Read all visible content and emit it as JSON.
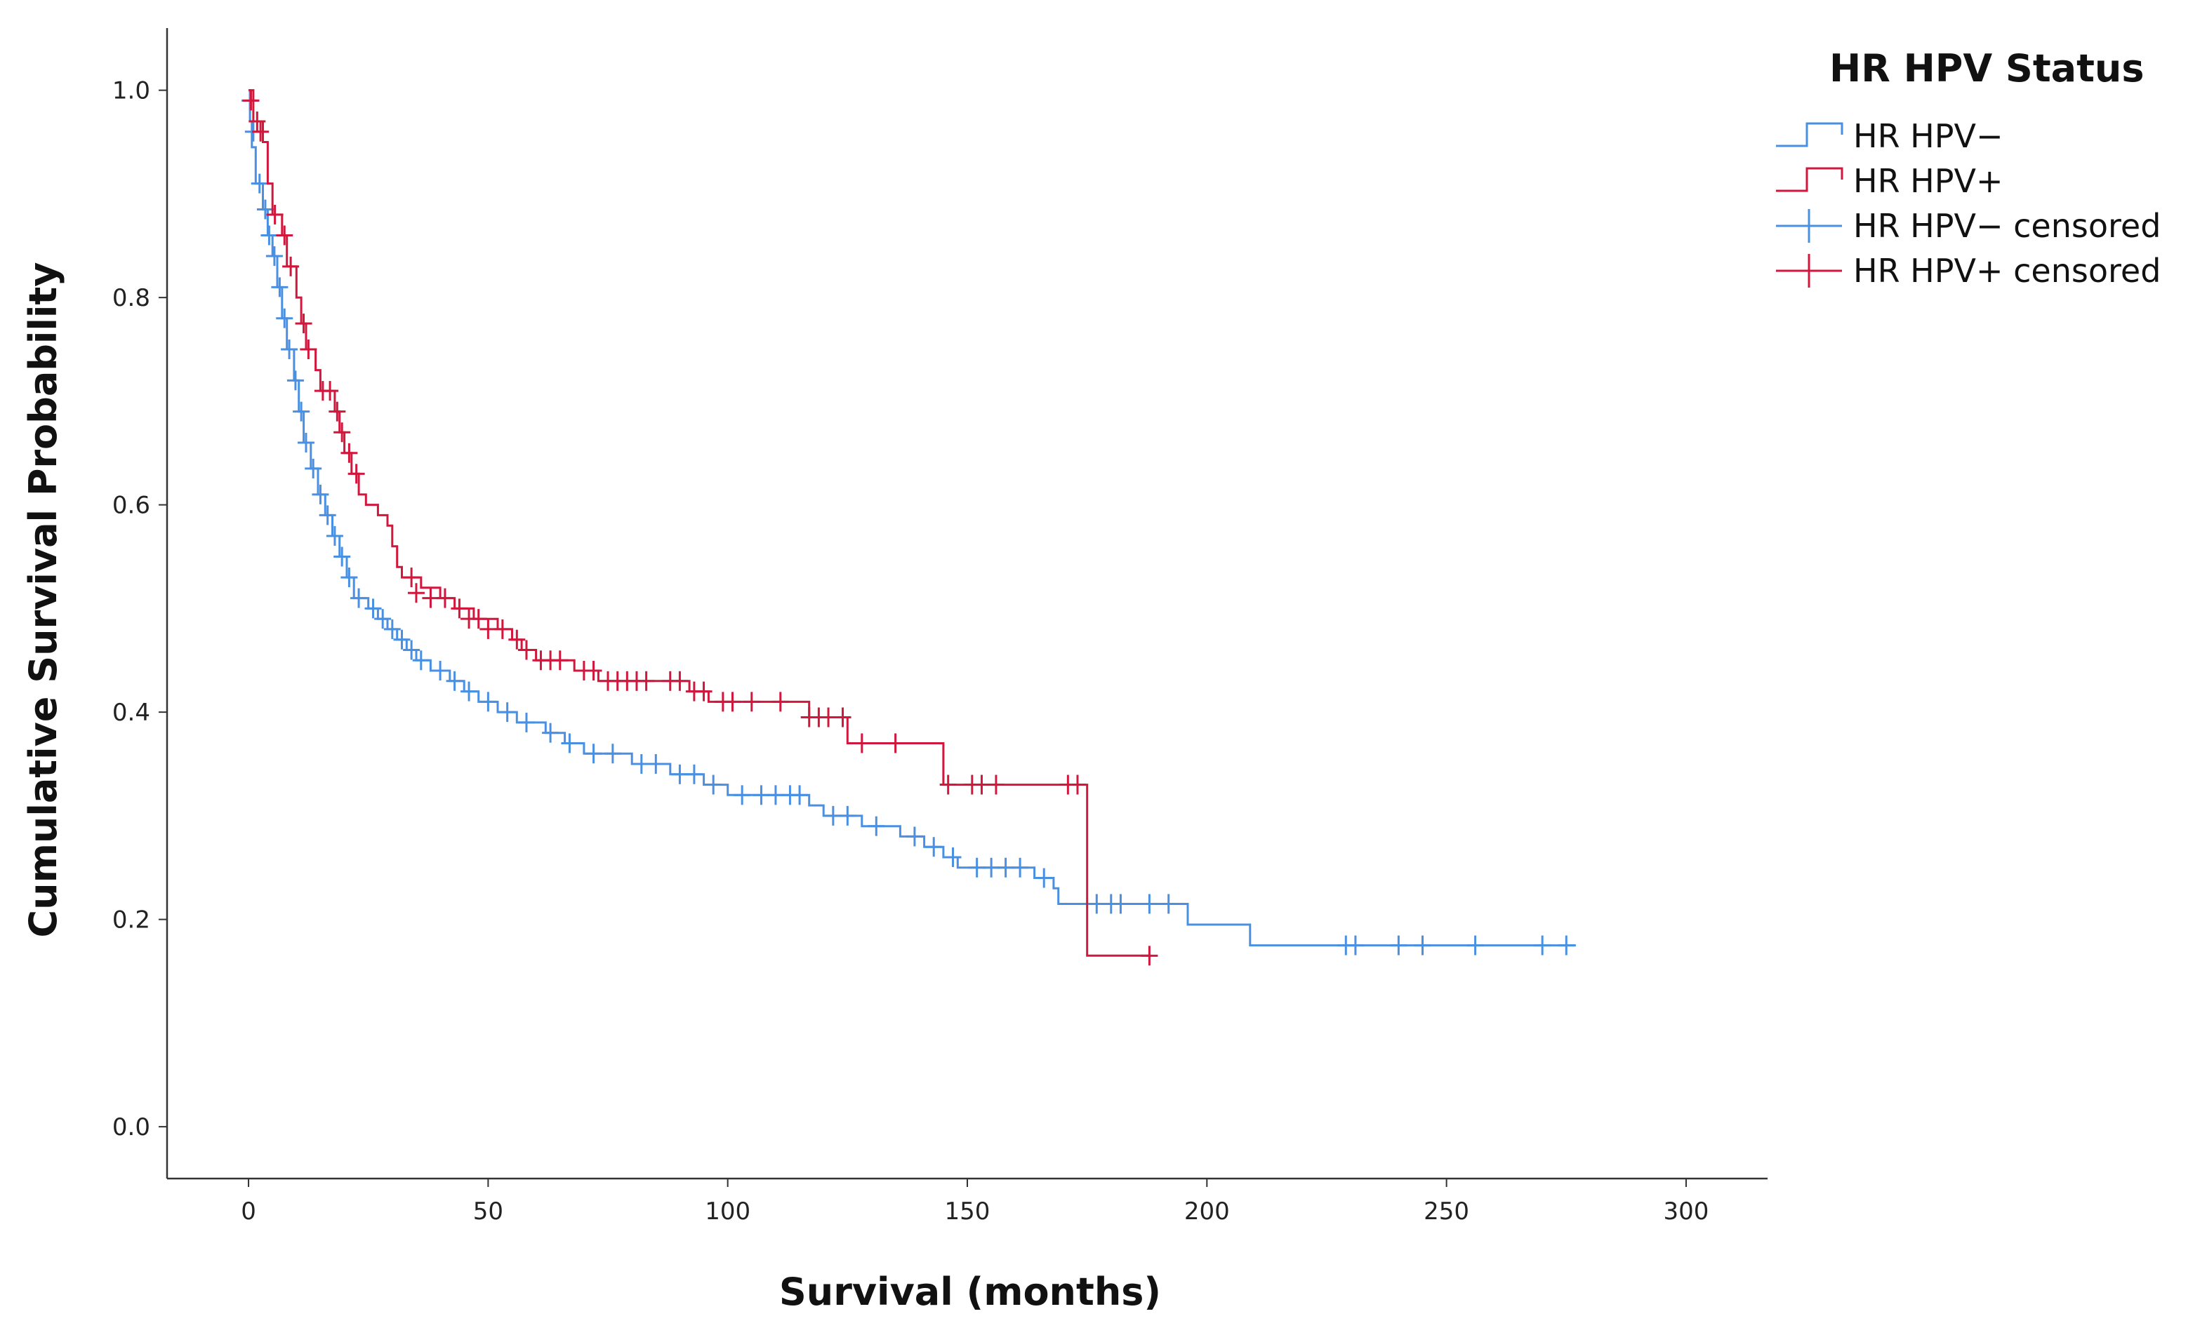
{
  "chart_data": {
    "type": "line",
    "subtype": "kaplan-meier-step",
    "title": "",
    "xlabel": "Survival (months)",
    "ylabel": "Cumulative Survival Probability",
    "xlim": [
      -17,
      317
    ],
    "ylim": [
      -0.05,
      1.06
    ],
    "x_ticks": [
      0,
      50,
      100,
      150,
      200,
      250,
      300
    ],
    "x_tick_labels": [
      "0",
      "50",
      "100",
      "150",
      "200",
      "250",
      "300"
    ],
    "y_ticks": [
      0.0,
      0.2,
      0.4,
      0.6,
      0.8,
      1.0
    ],
    "y_tick_labels": [
      "0.0",
      "0.2",
      "0.4",
      "0.6",
      "0.8",
      "1.0"
    ],
    "grid": false,
    "legend": {
      "title": "HR HPV Status",
      "position": "top-right",
      "entries": [
        {
          "label": "HR HPV−",
          "series": "hpv_neg",
          "kind": "line"
        },
        {
          "label": "HR HPV+",
          "series": "hpv_pos",
          "kind": "line"
        },
        {
          "label": "HR HPV− censored",
          "series": "hpv_neg",
          "kind": "censor"
        },
        {
          "label": "HR HPV+ censored",
          "series": "hpv_pos",
          "kind": "censor"
        }
      ]
    },
    "series": [
      {
        "id": "hpv_neg",
        "color": "#4a90e2",
        "steps": [
          [
            0,
            1.0
          ],
          [
            0.3,
            0.97
          ],
          [
            0.7,
            0.945
          ],
          [
            1.5,
            0.91
          ],
          [
            3,
            0.885
          ],
          [
            4,
            0.86
          ],
          [
            5,
            0.84
          ],
          [
            6,
            0.81
          ],
          [
            7,
            0.78
          ],
          [
            8,
            0.75
          ],
          [
            9.5,
            0.72
          ],
          [
            10.5,
            0.69
          ],
          [
            11.5,
            0.66
          ],
          [
            13,
            0.635
          ],
          [
            14.5,
            0.61
          ],
          [
            16,
            0.59
          ],
          [
            17.5,
            0.57
          ],
          [
            19,
            0.55
          ],
          [
            20.5,
            0.53
          ],
          [
            22,
            0.51
          ],
          [
            25,
            0.5
          ],
          [
            27,
            0.49
          ],
          [
            29,
            0.48
          ],
          [
            31,
            0.47
          ],
          [
            33,
            0.46
          ],
          [
            35,
            0.45
          ],
          [
            38,
            0.44
          ],
          [
            42,
            0.43
          ],
          [
            45,
            0.42
          ],
          [
            48,
            0.41
          ],
          [
            52,
            0.4
          ],
          [
            56,
            0.39
          ],
          [
            62,
            0.38
          ],
          [
            66,
            0.37
          ],
          [
            70,
            0.36
          ],
          [
            80,
            0.35
          ],
          [
            88,
            0.34
          ],
          [
            95,
            0.33
          ],
          [
            100,
            0.32
          ],
          [
            117,
            0.31
          ],
          [
            120,
            0.3
          ],
          [
            128,
            0.29
          ],
          [
            136,
            0.28
          ],
          [
            141,
            0.27
          ],
          [
            145,
            0.26
          ],
          [
            148,
            0.25
          ],
          [
            164,
            0.24
          ],
          [
            168,
            0.23
          ],
          [
            169,
            0.215
          ],
          [
            196,
            0.195
          ],
          [
            209,
            0.175
          ],
          [
            277,
            0.175
          ]
        ],
        "censored": [
          [
            0.3,
            0.99
          ],
          [
            1,
            0.96
          ],
          [
            2.3,
            0.91
          ],
          [
            3.5,
            0.885
          ],
          [
            4.3,
            0.86
          ],
          [
            5.4,
            0.84
          ],
          [
            6.5,
            0.81
          ],
          [
            7.5,
            0.78
          ],
          [
            8.5,
            0.75
          ],
          [
            9.8,
            0.72
          ],
          [
            11,
            0.69
          ],
          [
            12,
            0.66
          ],
          [
            13.5,
            0.635
          ],
          [
            15,
            0.61
          ],
          [
            16.5,
            0.59
          ],
          [
            18,
            0.57
          ],
          [
            19.5,
            0.55
          ],
          [
            21,
            0.53
          ],
          [
            23,
            0.51
          ],
          [
            26,
            0.5
          ],
          [
            28,
            0.49
          ],
          [
            30,
            0.48
          ],
          [
            32,
            0.47
          ],
          [
            34,
            0.46
          ],
          [
            36,
            0.45
          ],
          [
            40,
            0.44
          ],
          [
            43,
            0.43
          ],
          [
            46,
            0.42
          ],
          [
            50,
            0.41
          ],
          [
            54,
            0.4
          ],
          [
            58,
            0.39
          ],
          [
            63,
            0.38
          ],
          [
            67,
            0.37
          ],
          [
            72,
            0.36
          ],
          [
            76,
            0.36
          ],
          [
            82,
            0.35
          ],
          [
            85,
            0.35
          ],
          [
            90,
            0.34
          ],
          [
            93,
            0.34
          ],
          [
            97,
            0.33
          ],
          [
            103,
            0.32
          ],
          [
            107,
            0.32
          ],
          [
            110,
            0.32
          ],
          [
            113,
            0.32
          ],
          [
            115,
            0.32
          ],
          [
            122,
            0.3
          ],
          [
            125,
            0.3
          ],
          [
            131,
            0.29
          ],
          [
            139,
            0.28
          ],
          [
            143,
            0.27
          ],
          [
            147,
            0.26
          ],
          [
            152,
            0.25
          ],
          [
            155,
            0.25
          ],
          [
            158,
            0.25
          ],
          [
            161,
            0.25
          ],
          [
            166,
            0.24
          ],
          [
            177,
            0.215
          ],
          [
            180,
            0.215
          ],
          [
            182,
            0.215
          ],
          [
            188,
            0.215
          ],
          [
            192,
            0.215
          ],
          [
            229,
            0.175
          ],
          [
            231,
            0.175
          ],
          [
            240,
            0.175
          ],
          [
            245,
            0.175
          ],
          [
            256,
            0.175
          ],
          [
            270,
            0.175
          ],
          [
            275,
            0.175
          ]
        ]
      },
      {
        "id": "hpv_pos",
        "color": "#d1173c",
        "steps": [
          [
            0,
            1.0
          ],
          [
            1,
            0.97
          ],
          [
            3,
            0.95
          ],
          [
            4,
            0.91
          ],
          [
            5,
            0.88
          ],
          [
            7,
            0.86
          ],
          [
            8,
            0.83
          ],
          [
            10,
            0.8
          ],
          [
            11,
            0.775
          ],
          [
            12,
            0.75
          ],
          [
            14,
            0.73
          ],
          [
            15,
            0.71
          ],
          [
            18,
            0.69
          ],
          [
            19,
            0.67
          ],
          [
            20,
            0.65
          ],
          [
            21.5,
            0.63
          ],
          [
            23,
            0.61
          ],
          [
            24.5,
            0.6
          ],
          [
            27,
            0.59
          ],
          [
            29,
            0.58
          ],
          [
            30,
            0.56
          ],
          [
            31,
            0.54
          ],
          [
            32,
            0.53
          ],
          [
            36,
            0.52
          ],
          [
            40,
            0.51
          ],
          [
            43,
            0.5
          ],
          [
            47,
            0.49
          ],
          [
            52,
            0.48
          ],
          [
            55,
            0.47
          ],
          [
            57,
            0.46
          ],
          [
            60,
            0.45
          ],
          [
            68,
            0.44
          ],
          [
            73,
            0.43
          ],
          [
            92,
            0.42
          ],
          [
            96,
            0.41
          ],
          [
            117,
            0.395
          ],
          [
            125,
            0.37
          ],
          [
            145,
            0.33
          ],
          [
            175,
            0.165
          ],
          [
            188,
            0.165
          ]
        ],
        "censored": [
          [
            0.5,
            0.99
          ],
          [
            1.8,
            0.97
          ],
          [
            2.5,
            0.96
          ],
          [
            5.5,
            0.88
          ],
          [
            7.5,
            0.86
          ],
          [
            8.8,
            0.83
          ],
          [
            11.5,
            0.775
          ],
          [
            12.5,
            0.75
          ],
          [
            15.5,
            0.71
          ],
          [
            17,
            0.71
          ],
          [
            18.5,
            0.69
          ],
          [
            19.5,
            0.67
          ],
          [
            21,
            0.65
          ],
          [
            22.5,
            0.63
          ],
          [
            34,
            0.53
          ],
          [
            35,
            0.515
          ],
          [
            38,
            0.51
          ],
          [
            41,
            0.51
          ],
          [
            44,
            0.5
          ],
          [
            46,
            0.49
          ],
          [
            48,
            0.49
          ],
          [
            50,
            0.48
          ],
          [
            53,
            0.48
          ],
          [
            56,
            0.47
          ],
          [
            58,
            0.46
          ],
          [
            61,
            0.45
          ],
          [
            63,
            0.45
          ],
          [
            65,
            0.45
          ],
          [
            70,
            0.44
          ],
          [
            72,
            0.44
          ],
          [
            75,
            0.43
          ],
          [
            77,
            0.43
          ],
          [
            79,
            0.43
          ],
          [
            81,
            0.43
          ],
          [
            83,
            0.43
          ],
          [
            88,
            0.43
          ],
          [
            90,
            0.43
          ],
          [
            93,
            0.42
          ],
          [
            95,
            0.42
          ],
          [
            99,
            0.41
          ],
          [
            101,
            0.41
          ],
          [
            105,
            0.41
          ],
          [
            111,
            0.41
          ],
          [
            117,
            0.395
          ],
          [
            119,
            0.395
          ],
          [
            121,
            0.395
          ],
          [
            124,
            0.395
          ],
          [
            128,
            0.37
          ],
          [
            135,
            0.37
          ],
          [
            146,
            0.33
          ],
          [
            151,
            0.33
          ],
          [
            153,
            0.33
          ],
          [
            156,
            0.33
          ],
          [
            171,
            0.33
          ],
          [
            173,
            0.33
          ],
          [
            188,
            0.165
          ]
        ]
      }
    ]
  }
}
